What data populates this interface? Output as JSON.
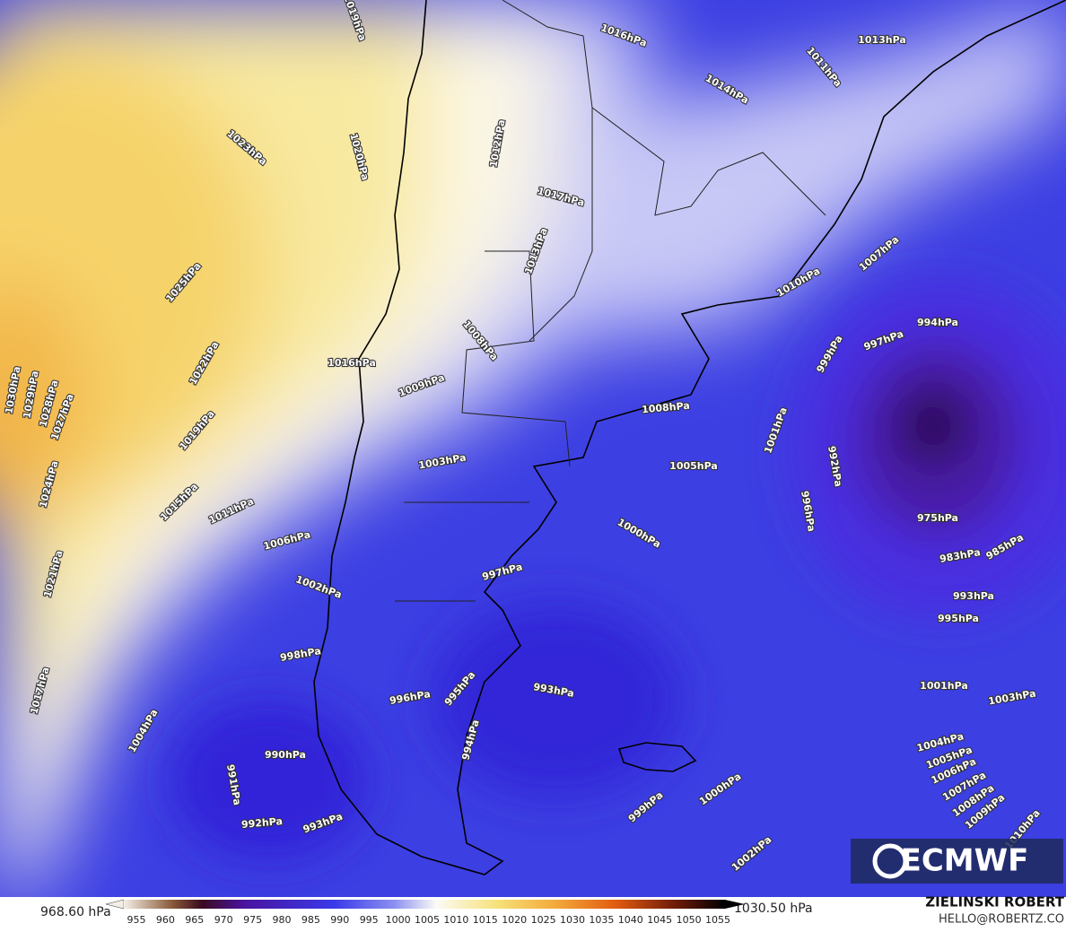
{
  "map": {
    "isobar_labels": [
      "1019hPa",
      "1023hPa",
      "1020hPa",
      "1025hPa",
      "1030hPa",
      "1029hPa",
      "1028hPa",
      "1027hPa",
      "1022hPa",
      "1019hPa",
      "1015hPa",
      "1011hPa",
      "1024hPa",
      "1021hPa",
      "1017hPa",
      "1006hPa",
      "1002hPa",
      "998hPa",
      "1004hPa",
      "990hPa",
      "991hPa",
      "992hPa",
      "993hPa",
      "996hPa",
      "995hPa",
      "994hPa",
      "993hPa",
      "997hPa",
      "1000hPa",
      "1003hPa",
      "1005hPa",
      "1008hPa",
      "1009hPa",
      "1008hPa",
      "1016hPa",
      "1017hPa",
      "1013hPa",
      "1016hPa",
      "1013hPa",
      "1011hPa",
      "1014hPa",
      "1010hPa",
      "1007hPa",
      "994hPa",
      "997hPa",
      "999hPa",
      "1001hPa",
      "992hPa",
      "996hPa",
      "975hPa",
      "983hPa",
      "985hPa",
      "993hPa",
      "995hPa",
      "1001hPa",
      "1003hPa",
      "1004hPa",
      "1005hPa",
      "1006hPa",
      "1007hPa",
      "1008hPa",
      "1009hPa",
      "1010hPa",
      "1000hPa",
      "999hPa",
      "1002hPa",
      "1012hPa"
    ]
  },
  "colorbar": {
    "min_label": "968.60 hPa",
    "max_label": "1030.50 hPa",
    "ticks": [
      955,
      960,
      965,
      970,
      975,
      980,
      985,
      990,
      995,
      1000,
      1005,
      1010,
      1015,
      1020,
      1025,
      1030,
      1035,
      1040,
      1045,
      1050,
      1055
    ]
  },
  "logo": "ECMWF",
  "credits": {
    "author": "ZIELINSKI ROBERT",
    "contact": "HELLO@ROBERTZ.CO"
  }
}
